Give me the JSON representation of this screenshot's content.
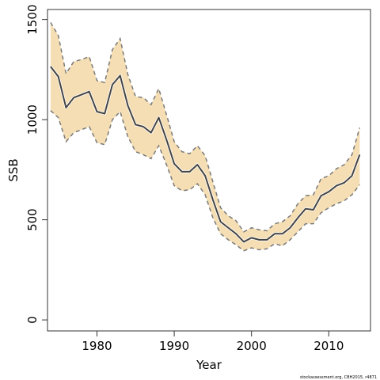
{
  "chart_data": {
    "type": "line",
    "title": "",
    "xlabel": "Year",
    "ylabel": "SSB",
    "xlim": [
      1973.6,
      2015.4
    ],
    "ylim": [
      -55,
      1550
    ],
    "xticks": [
      1980,
      1990,
      2000,
      2010
    ],
    "yticks": [
      0,
      500,
      1000,
      1500
    ],
    "grid": false,
    "legend": "none",
    "credit": "stockassessment.org, CBH2015, r4871",
    "colors": {
      "band": "#f5deb3",
      "line": "#444444",
      "bound": "#7a7a7a",
      "axis": "#333333"
    },
    "x": [
      1974,
      1975,
      1976,
      1977,
      1978,
      1979,
      1980,
      1981,
      1982,
      1983,
      1984,
      1985,
      1986,
      1987,
      1988,
      1989,
      1990,
      1991,
      1992,
      1993,
      1994,
      1995,
      1996,
      1997,
      1998,
      1999,
      2000,
      2001,
      2002,
      2003,
      2004,
      2005,
      2006,
      2007,
      2008,
      2009,
      2010,
      2011,
      2012,
      2013,
      2014
    ],
    "series": [
      {
        "role": "estimate",
        "values": [
          1265,
          1215,
          1060,
          1110,
          1125,
          1140,
          1040,
          1030,
          1175,
          1220,
          1070,
          975,
          965,
          935,
          1010,
          900,
          780,
          740,
          740,
          775,
          720,
          600,
          490,
          460,
          430,
          390,
          410,
          400,
          400,
          430,
          430,
          460,
          510,
          555,
          550,
          620,
          640,
          670,
          685,
          720,
          825
        ]
      },
      {
        "role": "upper",
        "values": [
          1485,
          1420,
          1230,
          1290,
          1300,
          1315,
          1195,
          1185,
          1350,
          1405,
          1225,
          1115,
          1110,
          1075,
          1155,
          1025,
          890,
          840,
          830,
          870,
          820,
          690,
          560,
          520,
          495,
          440,
          460,
          450,
          445,
          480,
          490,
          520,
          580,
          620,
          625,
          705,
          720,
          755,
          775,
          825,
          960
        ]
      },
      {
        "role": "lower",
        "values": [
          1045,
          1010,
          890,
          935,
          950,
          965,
          885,
          875,
          1000,
          1040,
          915,
          840,
          825,
          805,
          870,
          775,
          670,
          645,
          650,
          680,
          625,
          510,
          430,
          400,
          375,
          345,
          360,
          350,
          355,
          380,
          370,
          400,
          440,
          480,
          480,
          535,
          560,
          580,
          595,
          625,
          675
        ]
      }
    ]
  }
}
